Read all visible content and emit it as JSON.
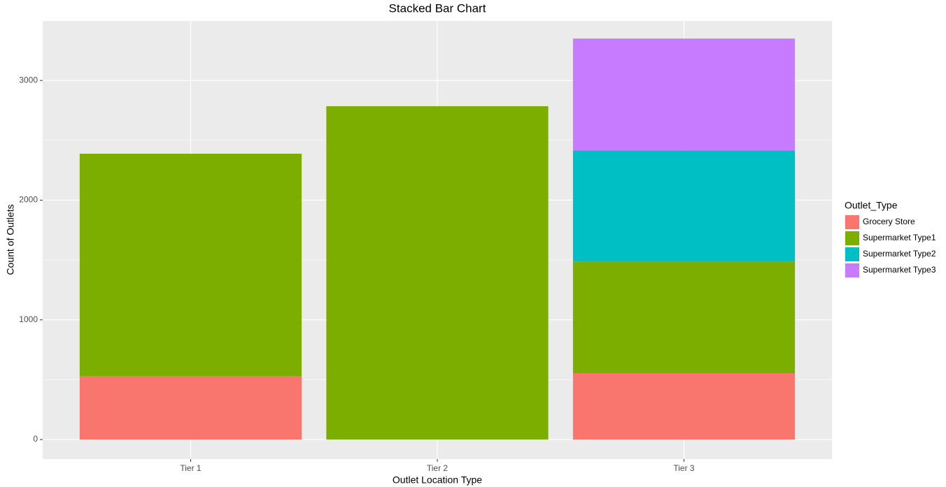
{
  "chart_data": {
    "type": "stacked_bar",
    "title": "Stacked Bar Chart",
    "x_label": "Outlet Location Type",
    "y_label": "Count of Outlets",
    "categories": [
      "Tier 1",
      "Tier 2",
      "Tier 3"
    ],
    "legend_title": "Outlet_Type",
    "legend_position": "right",
    "series": [
      {
        "name": "Grocery Store",
        "color": "#F8766D",
        "values": [
          528,
          null,
          555
        ]
      },
      {
        "name": "Supermarket Type1",
        "color": "#7CAE00",
        "values": [
          1860,
          2785,
          932
        ]
      },
      {
        "name": "Supermarket Type2",
        "color": "#00BFC4",
        "values": [
          null,
          null,
          928
        ]
      },
      {
        "name": "Supermarket Type3",
        "color": "#C77CFF",
        "values": [
          null,
          null,
          935
        ]
      }
    ],
    "ylim": [
      -163,
      3497
    ],
    "yticks": [
      0,
      1000,
      2000,
      3000
    ],
    "grid": true
  }
}
